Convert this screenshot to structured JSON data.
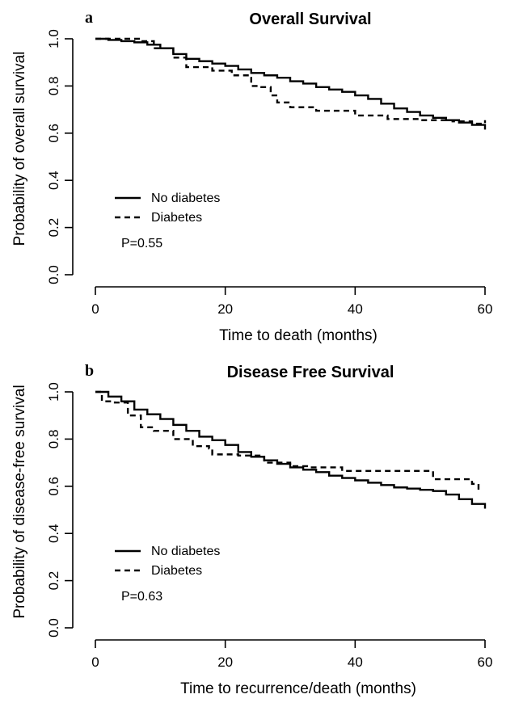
{
  "chart_data": [
    {
      "type": "line",
      "panel_label": "a",
      "title": "Overall Survival",
      "xlabel": "Time to death (months)",
      "ylabel": "Probability of overall survival",
      "xlim": [
        0,
        60
      ],
      "ylim": [
        0,
        1
      ],
      "xticks": [
        "0",
        "20",
        "40",
        "60"
      ],
      "yticks": [
        "0.0",
        "0.2",
        "0.4",
        "0.6",
        "0.8",
        "1.0"
      ],
      "legend_placement": "left-middle",
      "annotation": "P=0.55",
      "series": [
        {
          "name": "No diabetes",
          "style": "solid",
          "x": [
            0,
            2,
            4,
            6,
            8,
            10,
            12,
            14,
            16,
            18,
            20,
            22,
            24,
            26,
            28,
            30,
            32,
            34,
            36,
            38,
            40,
            42,
            44,
            46,
            48,
            50,
            52,
            54,
            56,
            58,
            60
          ],
          "y": [
            1.0,
            0.995,
            0.99,
            0.985,
            0.975,
            0.96,
            0.935,
            0.915,
            0.905,
            0.895,
            0.885,
            0.87,
            0.855,
            0.845,
            0.835,
            0.82,
            0.81,
            0.795,
            0.785,
            0.775,
            0.76,
            0.745,
            0.725,
            0.705,
            0.69,
            0.675,
            0.665,
            0.655,
            0.645,
            0.635,
            0.615
          ]
        },
        {
          "name": "Diabetes",
          "style": "dashed",
          "x": [
            0,
            5,
            7,
            9,
            12,
            14,
            18,
            21,
            24,
            25,
            27,
            28,
            30,
            34,
            40,
            45,
            50,
            55,
            58,
            60
          ],
          "y": [
            1.0,
            1.0,
            0.99,
            0.96,
            0.92,
            0.88,
            0.865,
            0.845,
            0.8,
            0.795,
            0.76,
            0.73,
            0.71,
            0.695,
            0.675,
            0.66,
            0.655,
            0.65,
            0.64,
            0.655
          ]
        }
      ]
    },
    {
      "type": "line",
      "panel_label": "b",
      "title": "Disease Free Survival",
      "xlabel": "Time to recurrence/death (months)",
      "ylabel": "Probability of disease-free survival",
      "xlim": [
        0,
        60
      ],
      "ylim": [
        0,
        1
      ],
      "xticks": [
        "0",
        "20",
        "40",
        "60"
      ],
      "yticks": [
        "0.0",
        "0.2",
        "0.4",
        "0.6",
        "0.8",
        "1.0"
      ],
      "legend_placement": "left-middle",
      "annotation": "P=0.63",
      "series": [
        {
          "name": "No diabetes",
          "style": "solid",
          "x": [
            0,
            2,
            4,
            6,
            8,
            10,
            12,
            14,
            16,
            18,
            20,
            22,
            24,
            26,
            28,
            30,
            32,
            34,
            36,
            38,
            40,
            42,
            44,
            46,
            48,
            50,
            52,
            54,
            56,
            58,
            60
          ],
          "y": [
            1.0,
            0.98,
            0.96,
            0.925,
            0.905,
            0.885,
            0.86,
            0.835,
            0.81,
            0.795,
            0.775,
            0.745,
            0.725,
            0.71,
            0.695,
            0.68,
            0.67,
            0.66,
            0.645,
            0.635,
            0.625,
            0.615,
            0.605,
            0.595,
            0.59,
            0.585,
            0.58,
            0.565,
            0.545,
            0.525,
            0.505
          ]
        },
        {
          "name": "Diabetes",
          "style": "dashed",
          "x": [
            0,
            1,
            3,
            5,
            7,
            9,
            12,
            15,
            17.5,
            18,
            22,
            26,
            30,
            33,
            38,
            44,
            49,
            52,
            56,
            58,
            59
          ],
          "y": [
            1.0,
            0.96,
            0.955,
            0.9,
            0.85,
            0.835,
            0.8,
            0.77,
            0.76,
            0.735,
            0.73,
            0.7,
            0.685,
            0.68,
            0.665,
            0.665,
            0.665,
            0.63,
            0.63,
            0.61,
            0.57
          ]
        }
      ]
    }
  ]
}
